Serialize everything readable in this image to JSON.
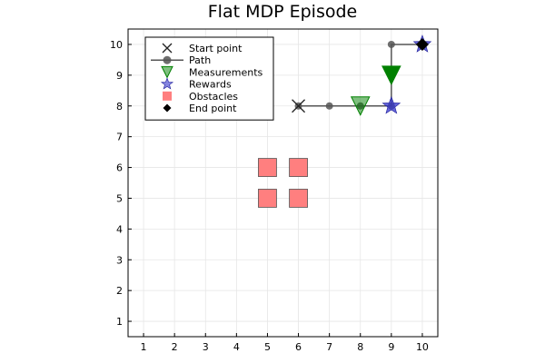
{
  "chart_data": {
    "type": "scatter",
    "title": "Flat MDP Episode",
    "xlabel": "",
    "ylabel": "",
    "xlim": [
      0.5,
      10.5
    ],
    "ylim": [
      0.5,
      10.5
    ],
    "x_ticks": [
      1,
      2,
      3,
      4,
      5,
      6,
      7,
      8,
      9,
      10
    ],
    "y_ticks": [
      1,
      2,
      3,
      4,
      5,
      6,
      7,
      8,
      9,
      10
    ],
    "grid": true,
    "legend_position": "top-left",
    "series": [
      {
        "name": "Start point",
        "marker": "x",
        "color": "#222222",
        "points": [
          {
            "x": 6,
            "y": 8
          }
        ]
      },
      {
        "name": "Path",
        "marker": "circle-line",
        "color": "#555555",
        "points": [
          {
            "x": 6,
            "y": 8
          },
          {
            "x": 7,
            "y": 8
          },
          {
            "x": 8,
            "y": 8
          },
          {
            "x": 9,
            "y": 8
          },
          {
            "x": 9,
            "y": 9
          },
          {
            "x": 9,
            "y": 10
          },
          {
            "x": 10,
            "y": 10
          }
        ]
      },
      {
        "name": "Measurements",
        "marker": "triangle-down",
        "color": "#008000",
        "points": [
          {
            "x": 8,
            "y": 8,
            "emphasis": "light"
          },
          {
            "x": 9,
            "y": 9,
            "emphasis": "strong"
          }
        ]
      },
      {
        "name": "Rewards",
        "marker": "star",
        "color": "#3333cc",
        "points": [
          {
            "x": 9,
            "y": 8
          },
          {
            "x": 10,
            "y": 10
          }
        ]
      },
      {
        "name": "Obstacles",
        "marker": "square",
        "color": "#ff7f7f",
        "points": [
          {
            "x": 5,
            "y": 5
          },
          {
            "x": 6,
            "y": 5
          },
          {
            "x": 5,
            "y": 6
          },
          {
            "x": 6,
            "y": 6
          }
        ]
      },
      {
        "name": "End point",
        "marker": "diamond",
        "color": "#000000",
        "points": [
          {
            "x": 10,
            "y": 10
          }
        ]
      }
    ]
  }
}
